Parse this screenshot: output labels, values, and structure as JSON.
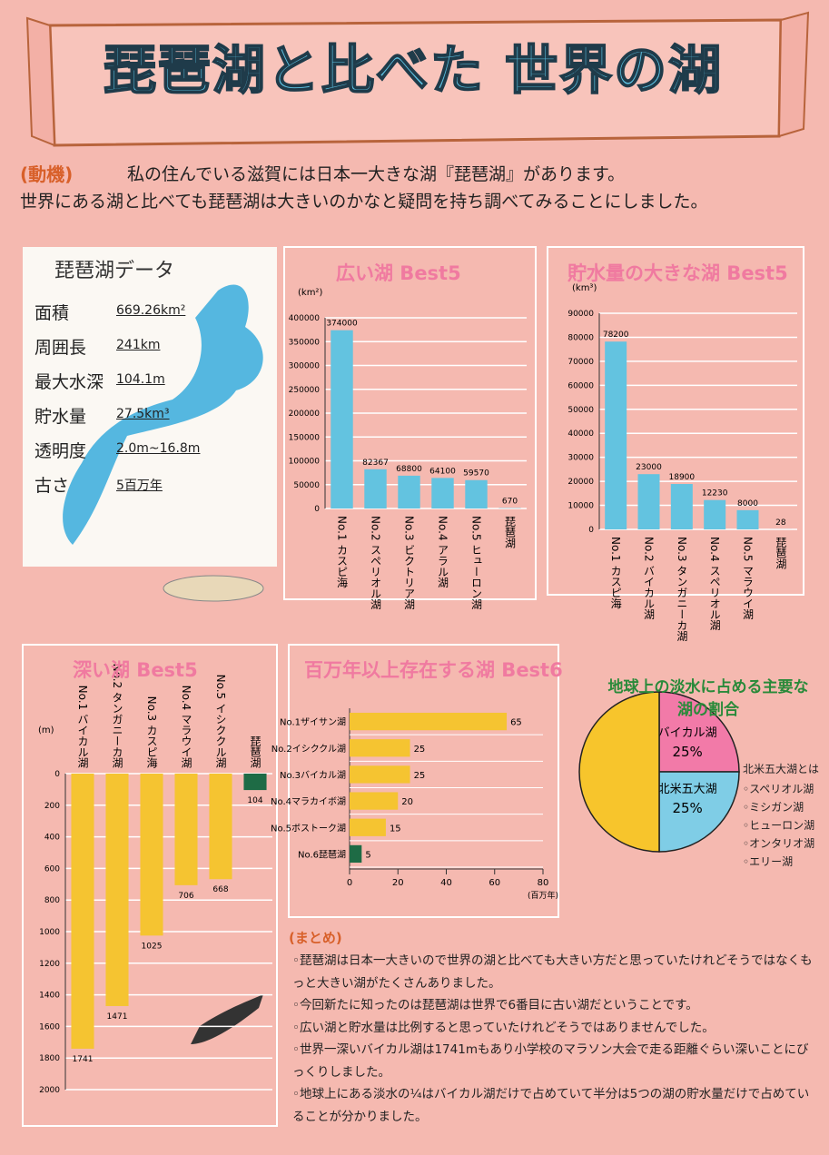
{
  "title": "琵琶湖と比べた 世界の湖",
  "motivation": {
    "label": "動機",
    "lines": [
      "私の住んでいる滋賀には日本一大きな湖『琵琶湖』があります。",
      "世界にある湖と比べても琵琶湖は大きいのかなと疑問を持ち調べてみることにしました。"
    ]
  },
  "lake_data": {
    "title": "琵琶湖データ",
    "rows": [
      [
        "面積",
        "669.26km²"
      ],
      [
        "周囲長",
        "241km"
      ],
      [
        "最大水深",
        "104.1m"
      ],
      [
        "貯水量",
        "27.5km³"
      ],
      [
        "透明度",
        "2.0m~16.8m"
      ],
      [
        "古さ",
        "5百万年"
      ]
    ]
  },
  "chart_data": [
    {
      "type": "bar",
      "title": "広い湖 Best5",
      "unit": "(km²)",
      "categories": [
        "No.1 カスピ海",
        "No.2 スペリオル湖",
        "No.3 ビクトリア湖",
        "No.4 アラル湖",
        "No.5 ヒューロン湖",
        "琵琶湖"
      ],
      "values": [
        374000,
        82367,
        68800,
        64100,
        59570,
        670
      ],
      "color": "#63c3e0",
      "ylim": [
        0,
        400000
      ],
      "yticks": [
        0,
        50000,
        100000,
        150000,
        200000,
        250000,
        300000,
        350000,
        400000
      ],
      "grid": true
    },
    {
      "type": "bar",
      "title": "貯水量の大きな湖 Best5",
      "unit": "(km³)",
      "categories": [
        "No.1 カスピ海",
        "No.2 バイカル湖",
        "No.3 タンガニーカ湖",
        "No.4 スペリオル湖",
        "No.5 マラウイ湖",
        "琵琶湖"
      ],
      "values": [
        78200,
        23000,
        18900,
        12230,
        8000,
        28
      ],
      "color": "#63c3e0",
      "ylim": [
        0,
        90000
      ],
      "yticks": [
        0,
        10000,
        20000,
        30000,
        40000,
        50000,
        60000,
        70000,
        80000,
        90000
      ],
      "grid": true
    },
    {
      "type": "bar",
      "title": "深い湖 Best5",
      "unit": "(m)",
      "inverted": true,
      "categories": [
        "No.1 バイカル湖",
        "No.2 タンガニーカ湖",
        "No.3 カスピ海",
        "No.4 マラウイ湖",
        "No.5 イシククル湖",
        "琵琶湖"
      ],
      "values": [
        1741,
        1471,
        1025,
        706,
        668,
        104
      ],
      "colors": [
        "#f5c431",
        "#f5c431",
        "#f5c431",
        "#f5c431",
        "#f5c431",
        "#1e6b45"
      ],
      "ylim": [
        0,
        2000
      ],
      "yticks": [
        0,
        200,
        400,
        600,
        800,
        1000,
        1200,
        1400,
        1600,
        1800,
        2000
      ],
      "grid": true
    },
    {
      "type": "barh",
      "title": "百万年以上存在する湖 Best6",
      "unit": "(百万年)",
      "categories": [
        "No.1ザイサン湖",
        "No.2イシククル湖",
        "No.3バイカル湖",
        "No.4マラカイボ湖",
        "No.5ボストーク湖",
        "No.6琵琶湖"
      ],
      "values": [
        65,
        25,
        25,
        20,
        15,
        5
      ],
      "colors": [
        "#f5c431",
        "#f5c431",
        "#f5c431",
        "#f5c431",
        "#f5c431",
        "#1e6b45"
      ],
      "xlim": [
        0,
        80
      ],
      "xticks": [
        0,
        20,
        40,
        60,
        80
      ]
    },
    {
      "type": "pie",
      "title": "地球上の淡水に占める主要な湖の割合",
      "categories": [
        "バイカル湖",
        "北米五大湖",
        null
      ],
      "values": [
        25,
        25,
        50
      ],
      "value_labels": [
        "25%",
        "25%",
        null
      ],
      "colors": [
        "#f27aa8",
        "#7fcde6",
        "#f7c52c"
      ]
    }
  ],
  "great_lakes": {
    "title": "北米五大湖とは",
    "items": [
      "スペリオル湖",
      "ミシガン湖",
      "ヒューロン湖",
      "オンタリオ湖",
      "エリー湖"
    ]
  },
  "summary": {
    "title": "まとめ",
    "items": [
      "琵琶湖は日本一大きいので世界の湖と比べても大きい方だと思っていたけれどそうではなくもっと大きい湖がたくさんありました。",
      "今回新たに知ったのは琵琶湖は世界で6番目に古い湖だということです。",
      "広い湖と貯水量は比例すると思っていたけれどそうではありませんでした。",
      "世界一深いバイカル湖は1741mもあり小学校のマラソン大会で走る距離ぐらい深いことにびっくりしました。",
      "地球上にある淡水の¼はバイカル湖だけで占めていて半分は5つの湖の貯水量だけで占めていることが分かりました。"
    ]
  }
}
